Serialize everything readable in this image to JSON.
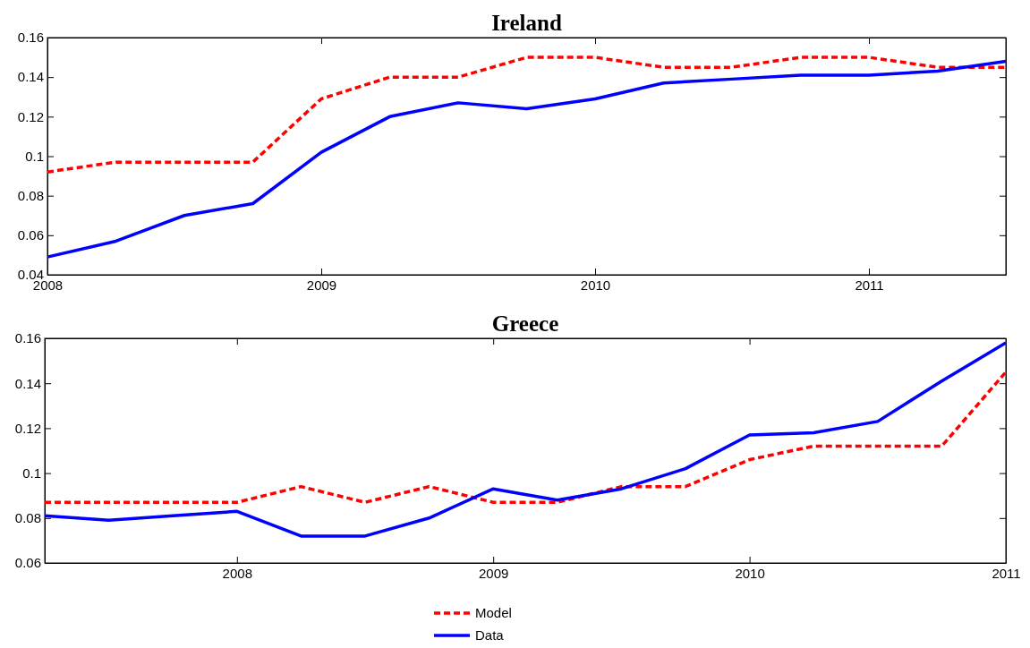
{
  "chart_data": [
    {
      "type": "line",
      "title": "Ireland",
      "x": [
        2008,
        2008.25,
        2008.5,
        2008.75,
        2009,
        2009.25,
        2009.5,
        2009.75,
        2010,
        2010.25,
        2010.5,
        2010.75,
        2011,
        2011.25,
        2011.5
      ],
      "xlim": [
        2008,
        2011.5
      ],
      "xticks": [
        2008,
        2009,
        2010,
        2011
      ],
      "ylim": [
        0.04,
        0.16
      ],
      "yticks": [
        0.04,
        0.06,
        0.08,
        0.1,
        0.12,
        0.14,
        0.16
      ],
      "grid": false,
      "series": [
        {
          "color": "#ff0000",
          "line_style": "dashed",
          "values": [
            0.092,
            0.097,
            0.097,
            0.097,
            0.129,
            0.14,
            0.14,
            0.15,
            0.15,
            0.145,
            0.145,
            0.15,
            0.15,
            0.145,
            0.145
          ]
        },
        {
          "color": "#0000ff",
          "line_style": "solid",
          "values": [
            0.049,
            0.057,
            0.07,
            0.076,
            0.102,
            0.12,
            0.127,
            0.124,
            0.129,
            0.137,
            0.139,
            0.141,
            0.141,
            0.143,
            0.148
          ]
        }
      ]
    },
    {
      "type": "line",
      "title": "Greece",
      "x": [
        2007.25,
        2007.5,
        2007.75,
        2008,
        2008.25,
        2008.5,
        2008.75,
        2009,
        2009.25,
        2009.5,
        2009.75,
        2010,
        2010.25,
        2010.5,
        2010.75,
        2011
      ],
      "xlim": [
        2007.25,
        2011
      ],
      "xticks": [
        2008,
        2009,
        2010,
        2011
      ],
      "ylim": [
        0.06,
        0.16
      ],
      "yticks": [
        0.06,
        0.08,
        0.1,
        0.12,
        0.14,
        0.16
      ],
      "grid": false,
      "legend": "bottom",
      "series": [
        {
          "name": "Model",
          "color": "#ff0000",
          "line_style": "dashed",
          "values": [
            0.087,
            0.087,
            0.087,
            0.087,
            0.094,
            0.087,
            0.094,
            0.087,
            0.087,
            0.094,
            0.094,
            0.106,
            0.112,
            0.112,
            0.112,
            0.145
          ]
        },
        {
          "name": "Data",
          "color": "#0000ff",
          "line_style": "solid",
          "values": [
            0.081,
            0.079,
            0.081,
            0.083,
            0.072,
            0.072,
            0.08,
            0.093,
            0.088,
            0.093,
            0.102,
            0.117,
            0.118,
            0.123,
            0.141,
            0.158
          ]
        }
      ]
    }
  ]
}
